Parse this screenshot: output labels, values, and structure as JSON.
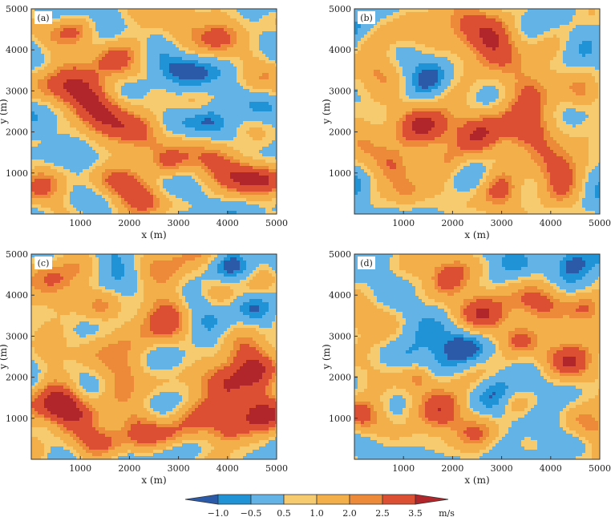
{
  "chart_data": [
    {
      "type": "heatmap",
      "panel_label": "(a)",
      "xlabel": "x (m)",
      "ylabel": "y (m)",
      "xlim": [
        0,
        5000
      ],
      "ylim": [
        0,
        5000
      ],
      "xticks": [
        "1000",
        "2000",
        "3000",
        "4000",
        "5000"
      ],
      "yticks": [
        "1000",
        "2000",
        "3000",
        "4000",
        "5000"
      ],
      "seed": 11,
      "blobs": [
        {
          "x": 700,
          "y": 3200,
          "r": 450,
          "a": 2.8
        },
        {
          "x": 1300,
          "y": 2600,
          "r": 400,
          "a": 2.4
        },
        {
          "x": 1500,
          "y": 1800,
          "r": 380,
          "a": 2.2
        },
        {
          "x": 1900,
          "y": 800,
          "r": 350,
          "a": 2.4
        },
        {
          "x": 2400,
          "y": 400,
          "r": 380,
          "a": 2.0
        },
        {
          "x": 2800,
          "y": 1200,
          "r": 300,
          "a": 1.8
        },
        {
          "x": 3900,
          "y": 1300,
          "r": 420,
          "a": 2.8
        },
        {
          "x": 4500,
          "y": 900,
          "r": 300,
          "a": 2.2
        },
        {
          "x": 4900,
          "y": 800,
          "r": 300,
          "a": 2.6
        },
        {
          "x": 300,
          "y": 800,
          "r": 350,
          "a": 2.6
        },
        {
          "x": 3800,
          "y": 4300,
          "r": 400,
          "a": 2.6
        },
        {
          "x": 3100,
          "y": 4800,
          "r": 300,
          "a": 2.0
        },
        {
          "x": 2100,
          "y": 4200,
          "r": 300,
          "a": 1.8
        },
        {
          "x": 1700,
          "y": 3800,
          "r": 280,
          "a": 1.6
        },
        {
          "x": 2300,
          "y": 2000,
          "r": 320,
          "a": 1.6
        },
        {
          "x": 4600,
          "y": 3100,
          "r": 300,
          "a": 1.4
        },
        {
          "x": 3300,
          "y": 2700,
          "r": 250,
          "a": 1.2
        },
        {
          "x": 900,
          "y": 4500,
          "r": 250,
          "a": 1.6
        },
        {
          "x": 1200,
          "y": 1200,
          "r": 300,
          "a": -1.4
        },
        {
          "x": 3200,
          "y": 3600,
          "r": 400,
          "a": -0.9
        },
        {
          "x": 3600,
          "y": 2300,
          "r": 350,
          "a": -0.8
        },
        {
          "x": 600,
          "y": 1600,
          "r": 300,
          "a": -1.0
        },
        {
          "x": 2800,
          "y": 700,
          "r": 250,
          "a": -1.3
        }
      ]
    },
    {
      "type": "heatmap",
      "panel_label": "(b)",
      "xlabel": "x (m)",
      "ylabel": "y (m)",
      "xlim": [
        0,
        5000
      ],
      "ylim": [
        0,
        5000
      ],
      "xticks": [
        "1000",
        "2000",
        "3000",
        "4000",
        "5000"
      ],
      "yticks": [
        "1000",
        "2000",
        "3000",
        "4000",
        "5000"
      ],
      "seed": 23,
      "blobs": [
        {
          "x": 500,
          "y": 2000,
          "r": 500,
          "a": 2.6
        },
        {
          "x": 1500,
          "y": 2100,
          "r": 400,
          "a": 2.2
        },
        {
          "x": 2600,
          "y": 2100,
          "r": 450,
          "a": 2.8
        },
        {
          "x": 3400,
          "y": 2000,
          "r": 350,
          "a": 2.4
        },
        {
          "x": 3700,
          "y": 3100,
          "r": 400,
          "a": 2.6
        },
        {
          "x": 3000,
          "y": 4000,
          "r": 420,
          "a": 2.6
        },
        {
          "x": 2100,
          "y": 4600,
          "r": 400,
          "a": 2.2
        },
        {
          "x": 1200,
          "y": 4500,
          "r": 350,
          "a": 1.8
        },
        {
          "x": 400,
          "y": 3500,
          "r": 380,
          "a": 2.2
        },
        {
          "x": 3000,
          "y": 500,
          "r": 350,
          "a": 2.6
        },
        {
          "x": 4200,
          "y": 1200,
          "r": 400,
          "a": 2.2
        },
        {
          "x": 1100,
          "y": 500,
          "r": 300,
          "a": 2.6
        },
        {
          "x": 800,
          "y": 1200,
          "r": 300,
          "a": 2.0
        },
        {
          "x": 4700,
          "y": 2900,
          "r": 280,
          "a": 1.6
        },
        {
          "x": 1900,
          "y": 1200,
          "r": 300,
          "a": 1.4
        },
        {
          "x": 3000,
          "y": 3000,
          "r": 350,
          "a": -1.1
        },
        {
          "x": 1600,
          "y": 3500,
          "r": 300,
          "a": -1.2
        },
        {
          "x": 4600,
          "y": 3700,
          "r": 300,
          "a": -0.9
        },
        {
          "x": 2400,
          "y": 1000,
          "r": 300,
          "a": -0.8
        },
        {
          "x": 200,
          "y": 4600,
          "r": 250,
          "a": -1.0
        }
      ]
    },
    {
      "type": "heatmap",
      "panel_label": "(c)",
      "xlabel": "x (m)",
      "ylabel": "y (m)",
      "xlim": [
        0,
        5000
      ],
      "ylim": [
        0,
        5000
      ],
      "xticks": [
        "1000",
        "2000",
        "3000",
        "4000",
        "5000"
      ],
      "yticks": [
        "1000",
        "2000",
        "3000",
        "4000",
        "5000"
      ],
      "seed": 37,
      "blobs": [
        {
          "x": 700,
          "y": 4200,
          "r": 450,
          "a": 2.6
        },
        {
          "x": 400,
          "y": 3000,
          "r": 350,
          "a": 2.0
        },
        {
          "x": 1900,
          "y": 2200,
          "r": 350,
          "a": 2.8
        },
        {
          "x": 2700,
          "y": 3300,
          "r": 400,
          "a": 2.6
        },
        {
          "x": 2900,
          "y": 4600,
          "r": 350,
          "a": 2.2
        },
        {
          "x": 4500,
          "y": 2400,
          "r": 450,
          "a": 2.8
        },
        {
          "x": 3900,
          "y": 1800,
          "r": 400,
          "a": 2.8
        },
        {
          "x": 4700,
          "y": 1100,
          "r": 400,
          "a": 3.0
        },
        {
          "x": 3500,
          "y": 1100,
          "r": 350,
          "a": 2.2
        },
        {
          "x": 2200,
          "y": 1000,
          "r": 350,
          "a": 2.2
        },
        {
          "x": 1200,
          "y": 1000,
          "r": 400,
          "a": 2.4
        },
        {
          "x": 400,
          "y": 1300,
          "r": 450,
          "a": 2.8
        },
        {
          "x": 1500,
          "y": 400,
          "r": 300,
          "a": 2.2
        },
        {
          "x": 2800,
          "y": 500,
          "r": 300,
          "a": 2.0
        },
        {
          "x": 4000,
          "y": 600,
          "r": 250,
          "a": 1.8
        },
        {
          "x": 4500,
          "y": 4200,
          "r": 300,
          "a": 1.4
        },
        {
          "x": 1400,
          "y": 3700,
          "r": 250,
          "a": 1.2
        },
        {
          "x": 4000,
          "y": 4500,
          "r": 300,
          "a": -1.0
        },
        {
          "x": 1200,
          "y": 1600,
          "r": 250,
          "a": -1.0
        },
        {
          "x": 3300,
          "y": 3900,
          "r": 250,
          "a": -0.8
        }
      ]
    },
    {
      "type": "heatmap",
      "panel_label": "(d)",
      "xlabel": "x (m)",
      "ylabel": "y (m)",
      "xlim": [
        0,
        5000
      ],
      "ylim": [
        0,
        5000
      ],
      "xticks": [
        "1000",
        "2000",
        "3000",
        "4000",
        "5000"
      ],
      "yticks": [
        "1000",
        "2000",
        "3000",
        "4000",
        "5000"
      ],
      "seed": 53,
      "blobs": [
        {
          "x": 1900,
          "y": 4400,
          "r": 330,
          "a": 2.8
        },
        {
          "x": 2600,
          "y": 3600,
          "r": 400,
          "a": 2.8
        },
        {
          "x": 3700,
          "y": 3800,
          "r": 400,
          "a": 2.4
        },
        {
          "x": 400,
          "y": 3500,
          "r": 450,
          "a": 2.6
        },
        {
          "x": 4300,
          "y": 2400,
          "r": 400,
          "a": 2.6
        },
        {
          "x": 4800,
          "y": 3700,
          "r": 300,
          "a": 2.6
        },
        {
          "x": 1700,
          "y": 1000,
          "r": 400,
          "a": 2.6
        },
        {
          "x": 2500,
          "y": 500,
          "r": 350,
          "a": 2.2
        },
        {
          "x": 200,
          "y": 1000,
          "r": 350,
          "a": 2.8
        },
        {
          "x": 4800,
          "y": 800,
          "r": 400,
          "a": 2.8
        },
        {
          "x": 1300,
          "y": 2000,
          "r": 250,
          "a": 2.4
        },
        {
          "x": 3400,
          "y": 2900,
          "r": 250,
          "a": 1.6
        },
        {
          "x": 1300,
          "y": 4800,
          "r": 280,
          "a": 1.8
        },
        {
          "x": 3300,
          "y": 1300,
          "r": 250,
          "a": 1.2
        },
        {
          "x": 1300,
          "y": 2900,
          "r": 450,
          "a": -1.6
        },
        {
          "x": 600,
          "y": 4500,
          "r": 300,
          "a": -1.2
        },
        {
          "x": 2200,
          "y": 2600,
          "r": 300,
          "a": -0.9
        },
        {
          "x": 3900,
          "y": 1000,
          "r": 350,
          "a": -1.0
        },
        {
          "x": 2900,
          "y": 1800,
          "r": 250,
          "a": -0.8
        },
        {
          "x": 3000,
          "y": 300,
          "r": 300,
          "a": -1.0
        },
        {
          "x": 4400,
          "y": 4800,
          "r": 250,
          "a": -1.2
        }
      ]
    }
  ],
  "colorbar": {
    "levels": [
      -1.0,
      -0.5,
      0.5,
      1.0,
      2.0,
      2.5,
      3.5
    ],
    "tick_labels": [
      "−1.0",
      "−0.5",
      "0.5",
      "1.0",
      "2.0",
      "2.5",
      "3.5"
    ],
    "unit": "m/s",
    "colors": [
      "#2b5aa8",
      "#1f93d5",
      "#64b3e6",
      "#f6ca6e",
      "#f3b04a",
      "#ec8a3a",
      "#dd4f32",
      "#b1262a"
    ]
  }
}
